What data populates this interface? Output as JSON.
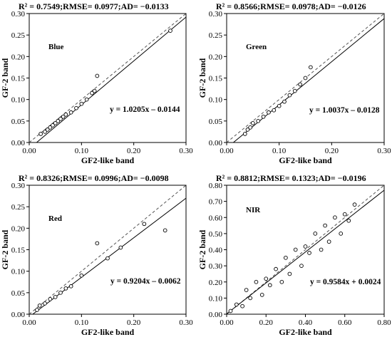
{
  "chart_data": [
    {
      "type": "scatter",
      "panel_label": "Blue",
      "stats": "R² = 0.7549;RMSE= 0.0977;AD= −0.0133",
      "equation": "y = 1.0205x – 0.0144",
      "xlabel": "GF2-like band",
      "ylabel": "GF-2 band",
      "xlim": [
        0,
        0.3
      ],
      "ylim": [
        0,
        0.3
      ],
      "xticks": [
        "0.00",
        "0.10",
        "0.20",
        "0.30"
      ],
      "yticks": [
        "0.00",
        "0.05",
        "0.10",
        "0.15",
        "0.20",
        "0.25",
        "0.30"
      ],
      "fit": {
        "slope": 1.0205,
        "intercept": -0.0144
      },
      "reference_line": "1:1",
      "points": {
        "x": [
          0.022,
          0.03,
          0.035,
          0.04,
          0.045,
          0.05,
          0.055,
          0.06,
          0.065,
          0.07,
          0.08,
          0.09,
          0.1,
          0.11,
          0.12,
          0.125,
          0.13,
          0.27
        ],
        "y": [
          0.02,
          0.025,
          0.03,
          0.035,
          0.04,
          0.045,
          0.05,
          0.055,
          0.06,
          0.065,
          0.07,
          0.08,
          0.09,
          0.1,
          0.115,
          0.12,
          0.155,
          0.26
        ]
      }
    },
    {
      "type": "scatter",
      "panel_label": "Green",
      "stats": "R² = 0.8566;RMSE= 0.0978;AD= −0.0126",
      "equation": "y = 1.0037x – 0.0128",
      "xlabel": "GF2-like band",
      "ylabel": "GF-2 band",
      "xlim": [
        0,
        0.3
      ],
      "ylim": [
        0,
        0.3
      ],
      "xticks": [
        "0.00",
        "0.10",
        "0.20",
        "0.30"
      ],
      "yticks": [
        "0.00",
        "0.05",
        "0.10",
        "0.15",
        "0.20",
        "0.25",
        "0.30"
      ],
      "fit": {
        "slope": 1.0037,
        "intercept": -0.0128
      },
      "reference_line": "1:1",
      "points": {
        "x": [
          0.035,
          0.04,
          0.045,
          0.05,
          0.06,
          0.07,
          0.08,
          0.09,
          0.1,
          0.11,
          0.12,
          0.13,
          0.14,
          0.15,
          0.16
        ],
        "y": [
          0.02,
          0.03,
          0.035,
          0.045,
          0.05,
          0.06,
          0.07,
          0.075,
          0.085,
          0.095,
          0.11,
          0.12,
          0.135,
          0.15,
          0.175
        ]
      }
    },
    {
      "type": "scatter",
      "panel_label": "Red",
      "stats": "R² = 0.8326;RMSE= 0.0996;AD= −0.0098",
      "equation": "y = 0.9204x – 0.0062",
      "xlabel": "GF2-like band",
      "ylabel": "GF-2 band",
      "xlim": [
        0,
        0.3
      ],
      "ylim": [
        0,
        0.3
      ],
      "xticks": [
        "0.00",
        "0.10",
        "0.20",
        "0.30"
      ],
      "yticks": [
        "0.00",
        "0.05",
        "0.10",
        "0.15",
        "0.20",
        "0.25",
        "0.30"
      ],
      "fit": {
        "slope": 0.9204,
        "intercept": -0.0062
      },
      "reference_line": "1:1",
      "points": {
        "x": [
          0.015,
          0.02,
          0.03,
          0.04,
          0.05,
          0.06,
          0.07,
          0.08,
          0.1,
          0.13,
          0.15,
          0.175,
          0.22,
          0.26
        ],
        "y": [
          0.01,
          0.02,
          0.025,
          0.035,
          0.04,
          0.05,
          0.06,
          0.065,
          0.09,
          0.165,
          0.13,
          0.155,
          0.21,
          0.195
        ]
      }
    },
    {
      "type": "scatter",
      "panel_label": "NIR",
      "stats": "R² = 0.8812;RMSE= 0.1323;AD= −0.0196",
      "equation": "y = 0.9584x + 0.0024",
      "xlabel": "GF2-like  band",
      "ylabel": "GF-2 band",
      "xlim": [
        0,
        0.8
      ],
      "ylim": [
        0,
        0.8
      ],
      "xticks": [
        "0.00",
        "0.20",
        "0.40",
        "0.60",
        "0.80"
      ],
      "yticks": [
        "0.00",
        "0.10",
        "0.20",
        "0.30",
        "0.40",
        "0.50",
        "0.60",
        "0.70",
        "0.80"
      ],
      "fit": {
        "slope": 0.9584,
        "intercept": 0.0024
      },
      "reference_line": "1:1",
      "points": {
        "x": [
          0.02,
          0.05,
          0.08,
          0.1,
          0.12,
          0.15,
          0.18,
          0.2,
          0.22,
          0.25,
          0.28,
          0.3,
          0.32,
          0.35,
          0.38,
          0.4,
          0.42,
          0.45,
          0.48,
          0.5,
          0.52,
          0.55,
          0.58,
          0.6,
          0.62,
          0.65
        ],
        "y": [
          0.02,
          0.06,
          0.05,
          0.15,
          0.1,
          0.2,
          0.12,
          0.22,
          0.18,
          0.28,
          0.2,
          0.35,
          0.25,
          0.4,
          0.3,
          0.42,
          0.38,
          0.5,
          0.4,
          0.55,
          0.45,
          0.6,
          0.5,
          0.62,
          0.58,
          0.68
        ]
      }
    }
  ]
}
